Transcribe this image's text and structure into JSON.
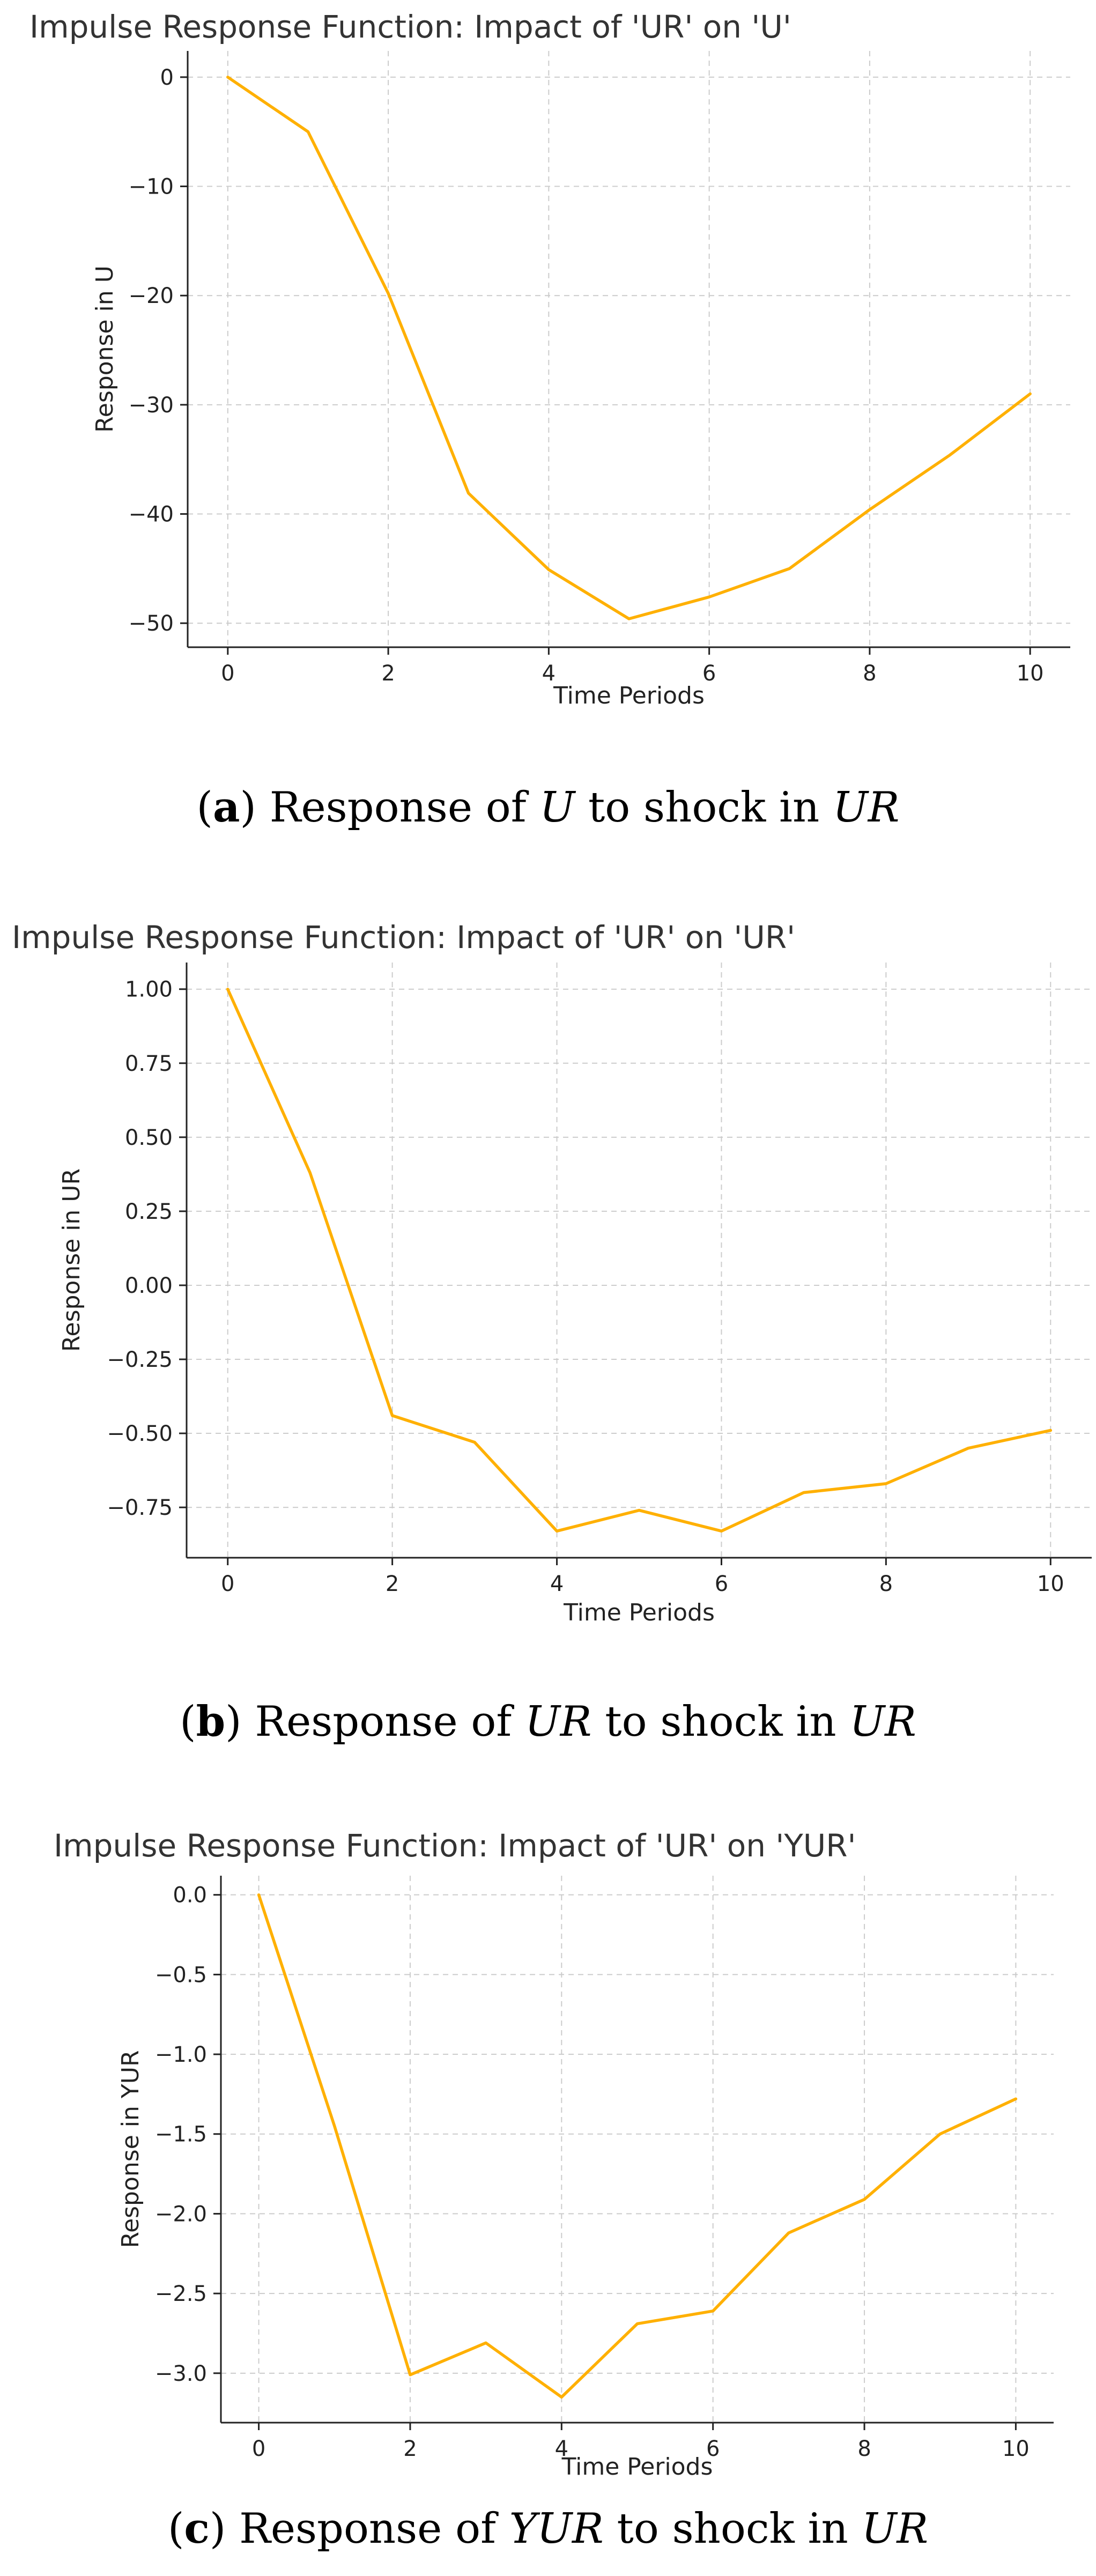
{
  "line_color": "#FFB000",
  "chart_data": [
    {
      "type": "line",
      "title": "Impulse Response Function: Impact of 'UR' on 'U'",
      "xlabel": "Time Periods",
      "ylabel": "Response in U",
      "x": [
        0,
        1,
        2,
        3,
        4,
        5,
        6,
        7,
        8,
        9,
        10
      ],
      "values": [
        0,
        -5.0,
        -19.8,
        -38.1,
        -45.1,
        -49.6,
        -47.6,
        -45.0,
        -39.6,
        -34.6,
        -29.0
      ],
      "xlim": [
        -0.5,
        10.5
      ],
      "ylim": [
        -52.2,
        2.4
      ],
      "xticks": [
        0,
        2,
        4,
        6,
        8,
        10
      ],
      "xtick_labels": [
        "0",
        "2",
        "4",
        "6",
        "8",
        "10"
      ],
      "yticks": [
        0,
        -10,
        -20,
        -30,
        -40,
        -50
      ],
      "ytick_labels": [
        "0",
        "−10",
        "−20",
        "−30",
        "−40",
        "−50"
      ],
      "grid": true
    },
    {
      "type": "line",
      "title": "Impulse Response Function: Impact of 'UR' on 'UR'",
      "xlabel": "Time Periods",
      "ylabel": "Response in UR",
      "x": [
        0,
        1,
        2,
        3,
        4,
        5,
        6,
        7,
        8,
        9,
        10
      ],
      "values": [
        1.0,
        0.38,
        -0.44,
        -0.53,
        -0.83,
        -0.76,
        -0.83,
        -0.7,
        -0.67,
        -0.55,
        -0.49
      ],
      "xlim": [
        -0.5,
        10.5
      ],
      "ylim": [
        -0.92,
        1.09
      ],
      "xticks": [
        0,
        2,
        4,
        6,
        8,
        10
      ],
      "xtick_labels": [
        "0",
        "2",
        "4",
        "6",
        "8",
        "10"
      ],
      "yticks": [
        1.0,
        0.75,
        0.5,
        0.25,
        0.0,
        -0.25,
        -0.5,
        -0.75
      ],
      "ytick_labels": [
        "1.00",
        "0.75",
        "0.50",
        "0.25",
        "0.00",
        "−0.25",
        "−0.50",
        "−0.75"
      ],
      "grid": true
    },
    {
      "type": "line",
      "title": "Impulse Response Function: Impact of 'UR' on 'YUR'",
      "xlabel": "Time Periods",
      "ylabel": "Response in YUR",
      "x": [
        0,
        1,
        2,
        3,
        4,
        5,
        6,
        7,
        8,
        9,
        10
      ],
      "values": [
        0,
        -1.45,
        -3.01,
        -2.81,
        -3.15,
        -2.69,
        -2.61,
        -2.12,
        -1.91,
        -1.5,
        -1.28
      ],
      "xlim": [
        -0.5,
        10.5
      ],
      "ylim": [
        -3.31,
        0.12
      ],
      "xticks": [
        0,
        2,
        4,
        6,
        8,
        10
      ],
      "xtick_labels": [
        "0",
        "2",
        "4",
        "6",
        "8",
        "10"
      ],
      "yticks": [
        0.0,
        -0.5,
        -1.0,
        -1.5,
        -2.0,
        -2.5,
        -3.0
      ],
      "ytick_labels": [
        "0.0",
        "−0.5",
        "−1.0",
        "−1.5",
        "−2.0",
        "−2.5",
        "−3.0"
      ],
      "grid": true
    }
  ],
  "captions": [
    {
      "letter": "a",
      "before": "Response of ",
      "var1": "U",
      "middle": " to shock in ",
      "var2": "UR"
    },
    {
      "letter": "b",
      "before": "Response of ",
      "var1": "UR",
      "middle": " to shock in ",
      "var2": "UR"
    },
    {
      "letter": "c",
      "before": "Response of ",
      "var1": "YUR",
      "middle": " to shock in ",
      "var2": "UR"
    }
  ]
}
